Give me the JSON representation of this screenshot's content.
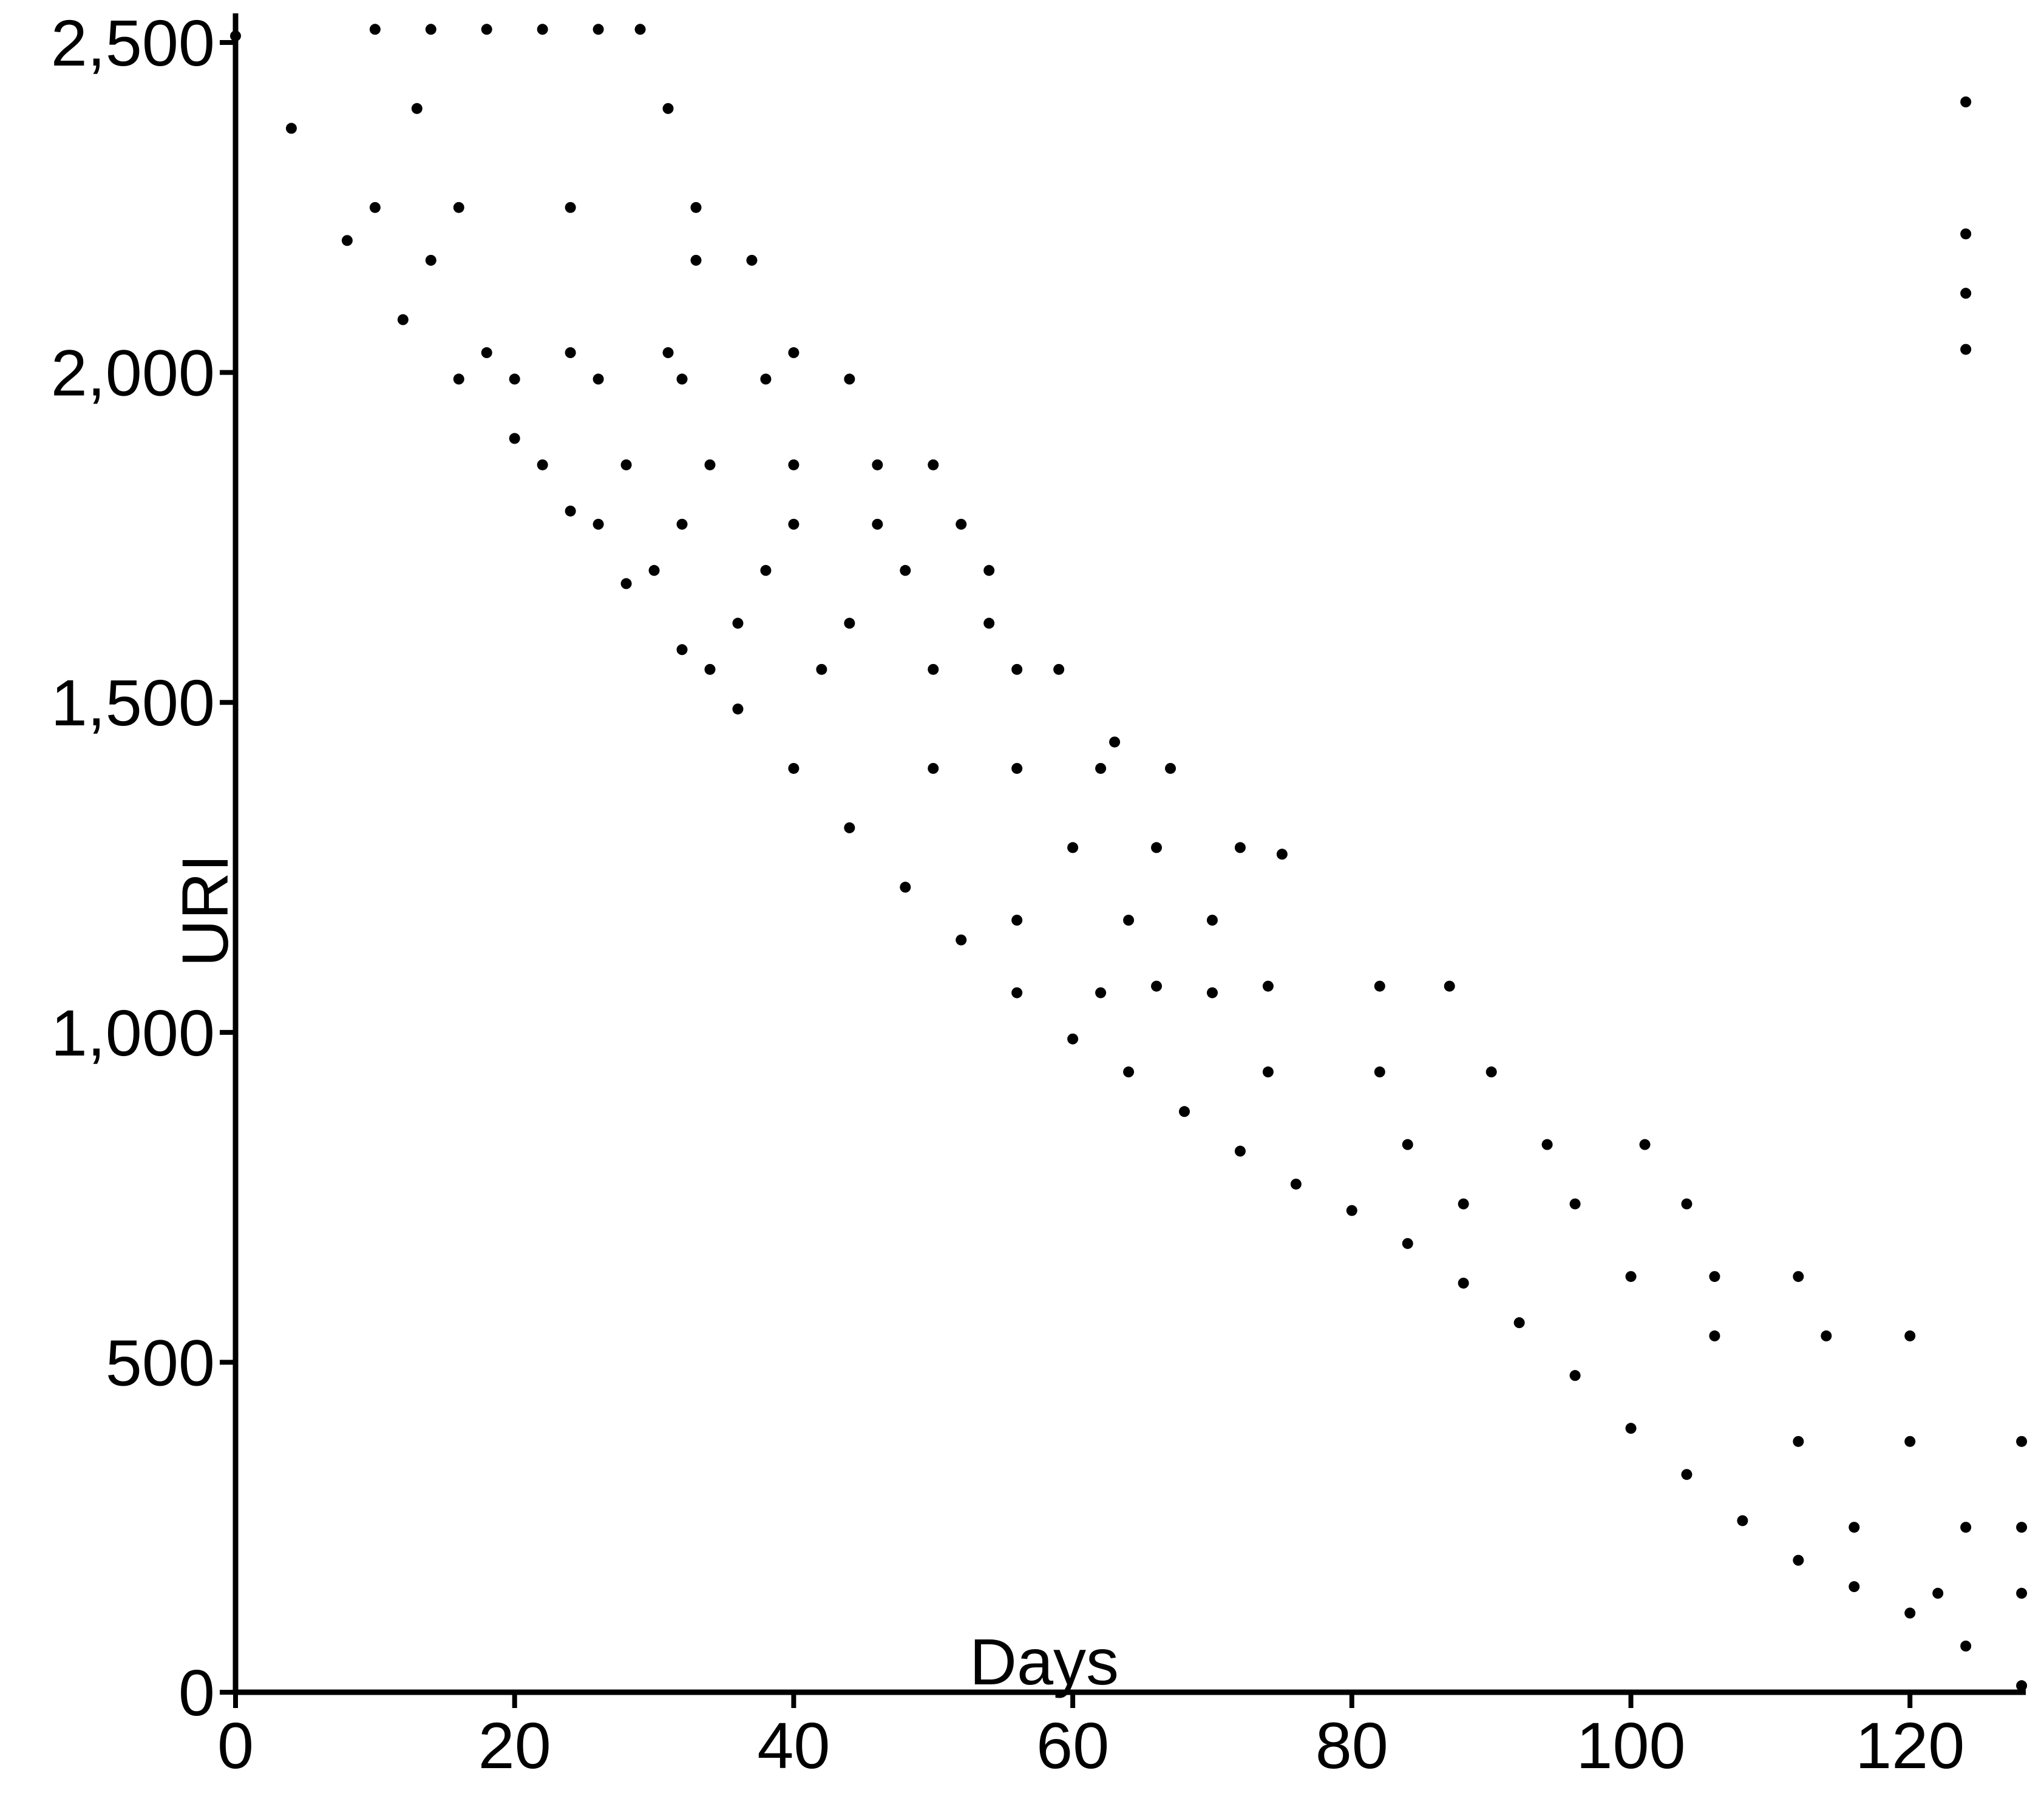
{
  "chart_data": {
    "type": "scatter",
    "x_label": "Days",
    "y_label": "URI",
    "color": "#000000",
    "x": [
      0,
      4,
      8,
      12,
      16,
      20,
      24,
      28,
      32,
      36,
      40,
      44,
      48,
      52,
      56,
      60,
      64,
      68,
      72,
      76,
      80,
      84,
      88,
      92,
      96,
      100,
      104,
      108,
      112,
      116,
      120,
      124,
      128,
      10,
      14,
      18,
      22,
      26,
      29,
      22,
      28,
      34,
      40,
      46,
      50,
      20,
      26,
      32,
      38,
      44,
      26,
      32,
      40,
      46,
      52,
      34,
      42,
      50,
      56,
      59,
      50,
      56,
      62,
      67,
      60,
      66,
      72,
      56,
      64,
      70,
      66,
      74,
      82,
      87,
      74,
      82,
      90,
      84,
      94,
      101,
      88,
      96,
      104,
      100,
      106,
      112,
      106,
      114,
      120,
      112,
      120,
      128,
      116,
      124,
      128,
      122,
      128,
      13,
      31,
      10,
      16,
      24,
      33,
      14,
      33,
      37,
      18,
      24,
      31,
      40,
      30,
      38,
      48,
      36,
      44,
      54,
      62,
      70,
      124,
      124,
      124,
      124,
      54,
      63,
      75
    ],
    "values": [
      2510,
      2370,
      2200,
      2080,
      1990,
      1900,
      1790,
      1680,
      1580,
      1490,
      1400,
      1310,
      1220,
      1140,
      1060,
      990,
      940,
      880,
      820,
      770,
      730,
      680,
      620,
      560,
      480,
      400,
      330,
      260,
      200,
      160,
      120,
      70,
      10,
      2520,
      2520,
      2520,
      2520,
      2520,
      2520,
      1860,
      1860,
      1860,
      1860,
      1860,
      1860,
      1990,
      1990,
      1990,
      1990,
      1990,
      1770,
      1770,
      1770,
      1770,
      1770,
      1550,
      1550,
      1550,
      1550,
      1550,
      1400,
      1400,
      1400,
      1400,
      1280,
      1280,
      1280,
      1170,
      1170,
      1170,
      1070,
      1070,
      1070,
      1070,
      940,
      940,
      940,
      830,
      830,
      830,
      740,
      740,
      740,
      630,
      630,
      630,
      540,
      540,
      540,
      380,
      380,
      380,
      250,
      250,
      250,
      150,
      150,
      2400,
      2400,
      2250,
      2250,
      2250,
      2250,
      2170,
      2170,
      2170,
      2030,
      2030,
      2030,
      2030,
      1700,
      1700,
      1700,
      1620,
      1620,
      1620,
      1060,
      1060,
      2410,
      2210,
      2120,
      2035,
      1700,
      1440,
      1270
    ],
    "xlim": [
      0,
      128.3
    ],
    "ylim": [
      0,
      2535
    ],
    "xticks": [
      0,
      20,
      40,
      60,
      80,
      100,
      120
    ],
    "yticks": [
      0,
      500,
      {
        "value": 1000,
        "label": "1,000"
      },
      {
        "value": 1500,
        "label": "1,500"
      },
      {
        "value": 2000,
        "label": "2,000"
      },
      {
        "value": 2500,
        "label": "2,500"
      }
    ]
  }
}
